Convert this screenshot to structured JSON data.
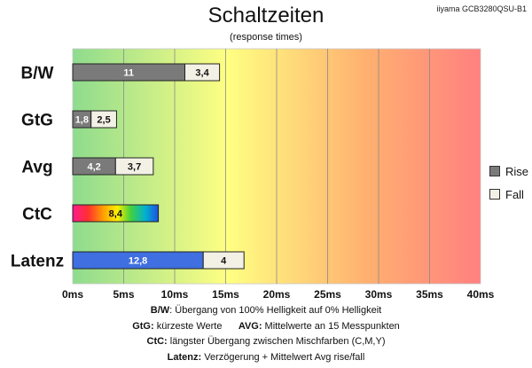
{
  "header": {
    "title": "Schaltzeiten",
    "subtitle": "(response times)",
    "model": "iiyama GCB3280QSU-B1"
  },
  "legend": {
    "rise_label": "Rise",
    "fall_label": "Fall",
    "rise_color": "#7a7a7a",
    "fall_color": "#f3f1e6"
  },
  "notes": [
    {
      "items": [
        {
          "term": "B/W",
          "text": ":  Übergang von 100% Helligkeit auf 0% Helligkeit"
        }
      ]
    },
    {
      "items": [
        {
          "term": "GtG:",
          "text": " kürzeste Werte"
        },
        {
          "term": "AVG:",
          "text": " Mittelwerte  an 15 Messpunkten"
        }
      ]
    },
    {
      "items": [
        {
          "term": "CtC:",
          "text": " längster Übergang zwischen Mischfarben (C,M,Y)"
        }
      ]
    },
    {
      "items": [
        {
          "term": "Latenz:",
          "text": " Verzögerung  + Mittelwert Avg rise/fall"
        }
      ]
    }
  ],
  "chart_data": {
    "type": "bar",
    "orientation": "horizontal",
    "stacked": true,
    "categories": [
      "B/W",
      "GtG",
      "Avg",
      "CtC",
      "Latenz"
    ],
    "series": [
      {
        "name": "Rise",
        "values": [
          11,
          1.8,
          4.2,
          8.4,
          12.8
        ],
        "labels": [
          "11",
          "1,8",
          "4,2",
          "8,4",
          "12,8"
        ]
      },
      {
        "name": "Fall",
        "values": [
          3.4,
          2.5,
          3.7,
          null,
          4
        ],
        "labels": [
          "3,4",
          "2,5",
          "3,7",
          "",
          "4"
        ]
      }
    ],
    "special_fills": {
      "CtC": "rainbow",
      "Latenz": "#3f6fe0"
    },
    "x_ticks": [
      0,
      5,
      10,
      15,
      20,
      25,
      30,
      35,
      40
    ],
    "x_tick_labels": [
      "0ms",
      "5ms",
      "10ms",
      "15ms",
      "20ms",
      "25ms",
      "30ms",
      "35ms",
      "40ms"
    ],
    "xlim": [
      0,
      40
    ],
    "background_gradient": [
      "#8edb8e",
      "#ffff82",
      "#ffb070",
      "#ff8080"
    ],
    "grid": true,
    "legend_position": "right"
  }
}
